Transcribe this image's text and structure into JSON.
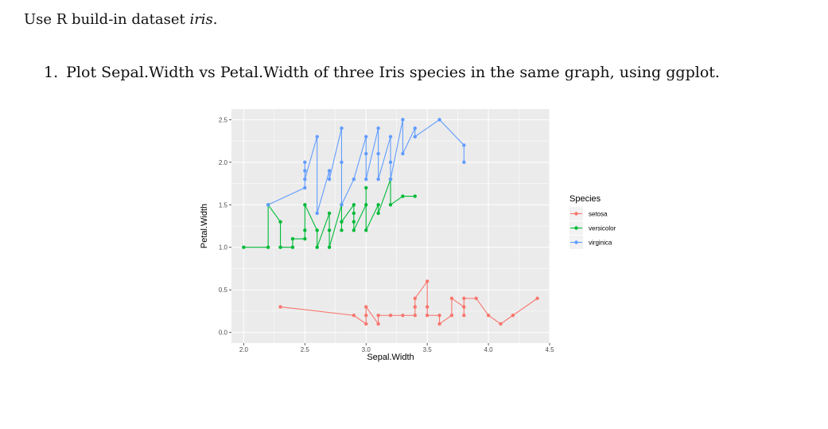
{
  "intro": {
    "prefix": "Use R build-in dataset ",
    "dataset": "iris."
  },
  "question": {
    "number": "1.",
    "text": "Plot Sepal.Width vs Petal.Width of three Iris species in the same graph, using ggplot."
  },
  "chart_data": {
    "type": "line",
    "xlabel": "Sepal.Width",
    "ylabel": "Petal.Width",
    "xlim": [
      1.9,
      4.5
    ],
    "ylim": [
      0.0,
      2.5
    ],
    "xticks": [
      "2.0",
      "2.5",
      "3.0",
      "3.5",
      "4.0",
      "4.5"
    ],
    "yticks": [
      "0.0",
      "0.5",
      "1.0",
      "1.5",
      "2.0",
      "2.5"
    ],
    "grid": true,
    "legend": {
      "title": "Species",
      "position": "right"
    },
    "series": [
      {
        "name": "setosa",
        "color": "#F8766D",
        "points": [
          [
            2.3,
            0.3
          ],
          [
            2.9,
            0.2
          ],
          [
            3.0,
            0.1
          ],
          [
            3.0,
            0.2
          ],
          [
            3.0,
            0.3
          ],
          [
            3.1,
            0.1
          ],
          [
            3.1,
            0.2
          ],
          [
            3.2,
            0.2
          ],
          [
            3.3,
            0.2
          ],
          [
            3.4,
            0.2
          ],
          [
            3.4,
            0.3
          ],
          [
            3.4,
            0.4
          ],
          [
            3.5,
            0.6
          ],
          [
            3.5,
            0.3
          ],
          [
            3.5,
            0.2
          ],
          [
            3.6,
            0.2
          ],
          [
            3.6,
            0.1
          ],
          [
            3.7,
            0.2
          ],
          [
            3.7,
            0.4
          ],
          [
            3.8,
            0.3
          ],
          [
            3.8,
            0.2
          ],
          [
            3.8,
            0.4
          ],
          [
            3.9,
            0.4
          ],
          [
            4.0,
            0.2
          ],
          [
            4.1,
            0.1
          ],
          [
            4.2,
            0.2
          ],
          [
            4.4,
            0.4
          ]
        ]
      },
      {
        "name": "versicolor",
        "color": "#00BA38",
        "points": [
          [
            2.0,
            1.0
          ],
          [
            2.2,
            1.0
          ],
          [
            2.2,
            1.5
          ],
          [
            2.3,
            1.3
          ],
          [
            2.3,
            1.0
          ],
          [
            2.4,
            1.0
          ],
          [
            2.4,
            1.1
          ],
          [
            2.5,
            1.1
          ],
          [
            2.5,
            1.2
          ],
          [
            2.5,
            1.5
          ],
          [
            2.6,
            1.2
          ],
          [
            2.6,
            1.0
          ],
          [
            2.7,
            1.4
          ],
          [
            2.7,
            1.2
          ],
          [
            2.7,
            1.0
          ],
          [
            2.8,
            1.5
          ],
          [
            2.8,
            1.2
          ],
          [
            2.8,
            1.3
          ],
          [
            2.9,
            1.5
          ],
          [
            2.9,
            1.4
          ],
          [
            2.9,
            1.3
          ],
          [
            2.9,
            1.2
          ],
          [
            3.0,
            1.5
          ],
          [
            3.0,
            1.7
          ],
          [
            3.0,
            1.2
          ],
          [
            3.1,
            1.5
          ],
          [
            3.1,
            1.4
          ],
          [
            3.2,
            1.8
          ],
          [
            3.2,
            1.5
          ],
          [
            3.3,
            1.6
          ],
          [
            3.4,
            1.6
          ]
        ]
      },
      {
        "name": "virginica",
        "color": "#619CFF",
        "points": [
          [
            2.2,
            1.5
          ],
          [
            2.5,
            1.7
          ],
          [
            2.5,
            2.0
          ],
          [
            2.5,
            1.9
          ],
          [
            2.5,
            1.8
          ],
          [
            2.6,
            2.3
          ],
          [
            2.6,
            1.4
          ],
          [
            2.7,
            1.9
          ],
          [
            2.7,
            1.8
          ],
          [
            2.8,
            2.4
          ],
          [
            2.8,
            2.0
          ],
          [
            2.8,
            1.5
          ],
          [
            2.9,
            1.8
          ],
          [
            3.0,
            2.3
          ],
          [
            3.0,
            2.1
          ],
          [
            3.0,
            1.8
          ],
          [
            3.1,
            2.4
          ],
          [
            3.1,
            2.1
          ],
          [
            3.1,
            1.8
          ],
          [
            3.2,
            2.3
          ],
          [
            3.2,
            2.0
          ],
          [
            3.2,
            1.8
          ],
          [
            3.3,
            2.5
          ],
          [
            3.3,
            2.1
          ],
          [
            3.4,
            2.4
          ],
          [
            3.4,
            2.3
          ],
          [
            3.6,
            2.5
          ],
          [
            3.8,
            2.2
          ],
          [
            3.8,
            2.0
          ]
        ]
      }
    ]
  }
}
